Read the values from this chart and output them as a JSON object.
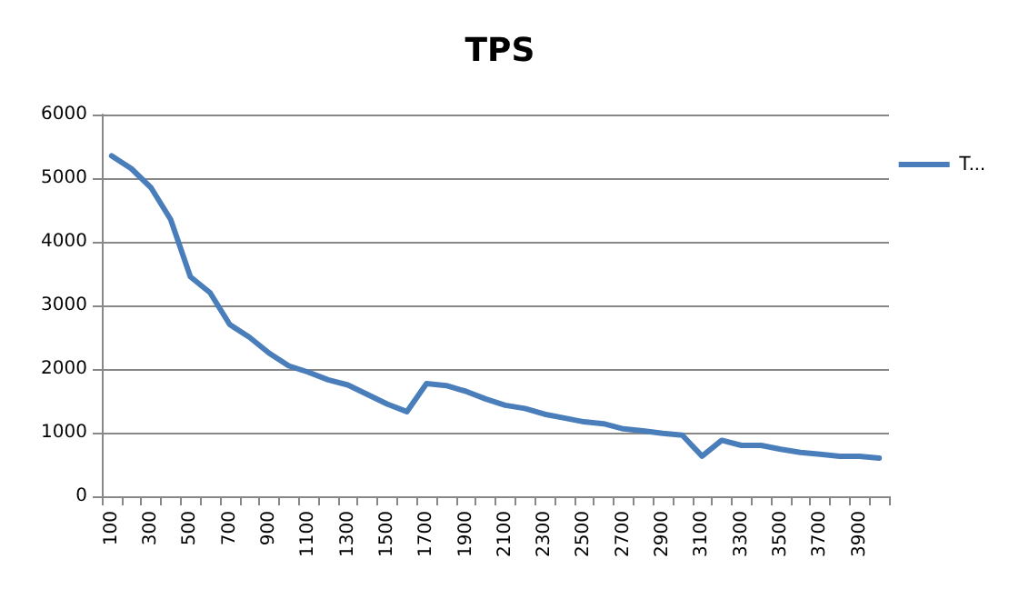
{
  "chart_data": {
    "type": "line",
    "title": "TPS",
    "categories": [
      "100",
      null,
      "300",
      null,
      "500",
      null,
      "700",
      null,
      "900",
      null,
      "1100",
      null,
      "1300",
      null,
      "1500",
      null,
      "1700",
      null,
      "1900",
      null,
      "2100",
      null,
      "2300",
      null,
      "2500",
      null,
      "2700",
      null,
      "2900",
      null,
      "3100",
      null,
      "3300",
      null,
      "3500",
      null,
      "3700",
      null,
      "3900",
      null
    ],
    "series": [
      {
        "name": "T...",
        "color": "#4a7ebb",
        "values": [
          5350,
          5150,
          4850,
          4350,
          3450,
          3200,
          2700,
          2500,
          2250,
          2050,
          1950,
          1830,
          1750,
          1600,
          1450,
          1330,
          1770,
          1740,
          1650,
          1530,
          1430,
          1380,
          1290,
          1230,
          1170,
          1140,
          1060,
          1030,
          990,
          960,
          630,
          880,
          800,
          800,
          740,
          690,
          660,
          630,
          630,
          600
        ]
      }
    ],
    "ylim": [
      0,
      6000
    ],
    "yticks": [
      0,
      1000,
      2000,
      3000,
      4000,
      5000,
      6000
    ],
    "grid": "y",
    "legend": "right",
    "marker": "none",
    "line_style": "solid"
  }
}
